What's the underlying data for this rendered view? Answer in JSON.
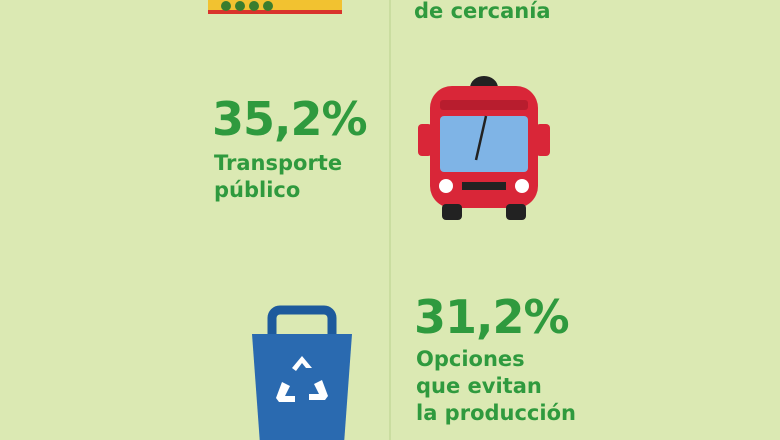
{
  "items": [
    {
      "lines": [
        "de cercanía"
      ]
    },
    {
      "percentage": "35,2%",
      "lines": [
        "Transporte",
        "público"
      ]
    },
    {
      "percentage": "31,2%",
      "lines": [
        "Opciones",
        "que evitan",
        "la producción"
      ]
    }
  ]
}
